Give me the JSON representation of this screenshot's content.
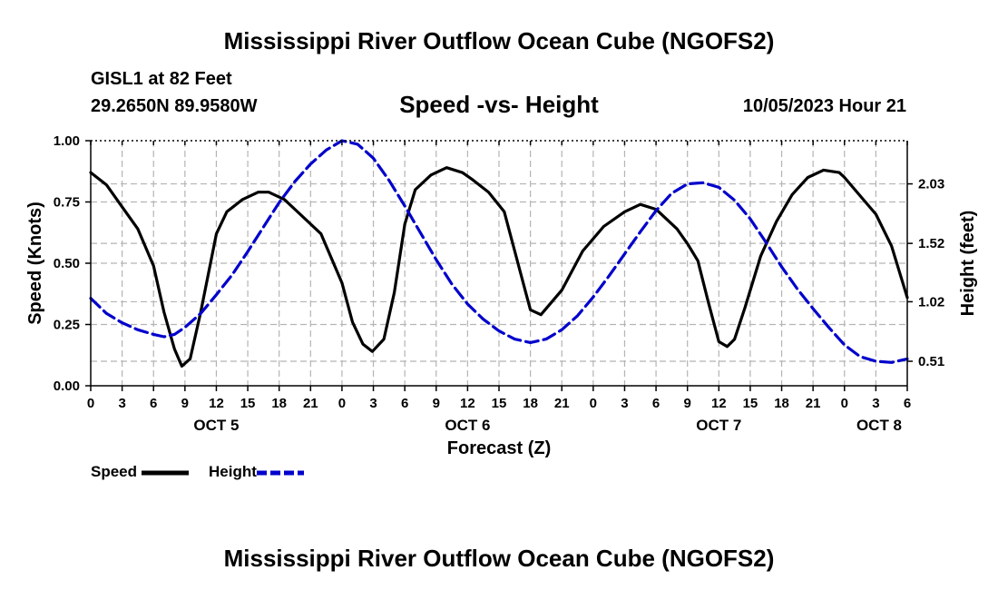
{
  "header": {
    "title": "Mississippi River Outflow Ocean Cube (NGOFS2)",
    "station": "GISL1 at 82 Feet",
    "coords": "29.2650N  89.9580W",
    "subtitle": "Speed -vs- Height",
    "datetime": "10/05/2023 Hour 21"
  },
  "footer": {
    "title": "Mississippi River Outflow Ocean Cube (NGOFS2)"
  },
  "chart_data": {
    "type": "line",
    "xlabel": "Forecast (Z)",
    "ylabel": "Speed (Knots)",
    "y2label": "Height (feet)",
    "xlim": [
      0,
      78
    ],
    "ylim": [
      0,
      1
    ],
    "y2lim": [
      0.3,
      2.4
    ],
    "x_ticks": [
      0,
      3,
      6,
      9,
      12,
      15,
      18,
      21,
      24,
      27,
      30,
      33,
      36,
      39,
      42,
      45,
      48,
      51,
      54,
      57,
      60,
      63,
      66,
      69,
      72,
      75,
      78
    ],
    "x_tick_labels": [
      "0",
      "3",
      "6",
      "9",
      "12",
      "15",
      "18",
      "21",
      "0",
      "3",
      "6",
      "9",
      "12",
      "15",
      "18",
      "21",
      "0",
      "3",
      "6",
      "9",
      "12",
      "15",
      "18",
      "21",
      "0",
      "3",
      "6"
    ],
    "y_ticks": [
      0,
      0.25,
      0.5,
      0.75,
      1.0
    ],
    "y_tick_labels": [
      "0.00",
      "0.25",
      "0.50",
      "0.75",
      "1.00"
    ],
    "y2_ticks": [
      0.51,
      1.02,
      1.52,
      2.03
    ],
    "y2_tick_labels": [
      "0.51",
      "1.02",
      "1.52",
      "2.03"
    ],
    "day_labels": [
      {
        "label": "OCT 5",
        "x": 12
      },
      {
        "label": "OCT 6",
        "x": 36
      },
      {
        "label": "OCT 7",
        "x": 60
      },
      {
        "label": "OCT 8",
        "x": 78
      }
    ],
    "grid": true,
    "legend": {
      "position": "bottom-left",
      "entries": [
        "Speed",
        "Height"
      ]
    },
    "series": [
      {
        "name": "Speed",
        "axis": "left",
        "color": "#000000",
        "style": "solid",
        "x": [
          0,
          1.5,
          3,
          4.5,
          6,
          7,
          8,
          8.7,
          9.5,
          10.5,
          12,
          13,
          14.5,
          16,
          17,
          18.5,
          20,
          22,
          24,
          25,
          26,
          26.9,
          28,
          29,
          30,
          31,
          32.5,
          34,
          35.5,
          36.5,
          38,
          39.5,
          40.5,
          41.5,
          42,
          43,
          45,
          47,
          49,
          51,
          52.5,
          54,
          56,
          57,
          58,
          59,
          60,
          60.8,
          61.5,
          62.5,
          64,
          65.5,
          67,
          68.5,
          70,
          71.5,
          72,
          73,
          75,
          76.5,
          78
        ],
        "values": [
          0.87,
          0.82,
          0.73,
          0.64,
          0.49,
          0.3,
          0.15,
          0.08,
          0.11,
          0.3,
          0.62,
          0.71,
          0.76,
          0.79,
          0.79,
          0.76,
          0.7,
          0.62,
          0.42,
          0.26,
          0.17,
          0.14,
          0.19,
          0.38,
          0.66,
          0.8,
          0.86,
          0.89,
          0.87,
          0.84,
          0.79,
          0.71,
          0.55,
          0.39,
          0.31,
          0.29,
          0.39,
          0.55,
          0.65,
          0.71,
          0.74,
          0.72,
          0.64,
          0.58,
          0.51,
          0.34,
          0.18,
          0.16,
          0.19,
          0.32,
          0.53,
          0.67,
          0.78,
          0.85,
          0.88,
          0.87,
          0.85,
          0.8,
          0.7,
          0.57,
          0.36
        ]
      },
      {
        "name": "Height",
        "axis": "right",
        "color": "#0000cc",
        "style": "dashed",
        "x": [
          0,
          1.5,
          3,
          4.5,
          6,
          7,
          8,
          9,
          10.5,
          12,
          13.5,
          15,
          16.5,
          18,
          19.5,
          21,
          22.5,
          24,
          25.5,
          27,
          28.5,
          30,
          31.5,
          33,
          34.5,
          36,
          37.5,
          39,
          40.5,
          42,
          43.5,
          45,
          46.5,
          48,
          49.5,
          51,
          52.5,
          54,
          55.5,
          57,
          58.5,
          60,
          61.5,
          63,
          64.5,
          66,
          67.5,
          69,
          70.5,
          72,
          73.5,
          75,
          76.5,
          78
        ],
        "values": [
          1.05,
          0.92,
          0.84,
          0.78,
          0.74,
          0.72,
          0.74,
          0.8,
          0.92,
          1.08,
          1.25,
          1.45,
          1.66,
          1.87,
          2.05,
          2.2,
          2.32,
          2.4,
          2.37,
          2.25,
          2.06,
          1.84,
          1.61,
          1.38,
          1.17,
          1.0,
          0.87,
          0.77,
          0.7,
          0.67,
          0.7,
          0.78,
          0.9,
          1.06,
          1.24,
          1.43,
          1.62,
          1.8,
          1.95,
          2.03,
          2.04,
          2.0,
          1.89,
          1.73,
          1.53,
          1.32,
          1.13,
          0.96,
          0.8,
          0.65,
          0.55,
          0.51,
          0.5,
          0.53
        ]
      }
    ]
  }
}
